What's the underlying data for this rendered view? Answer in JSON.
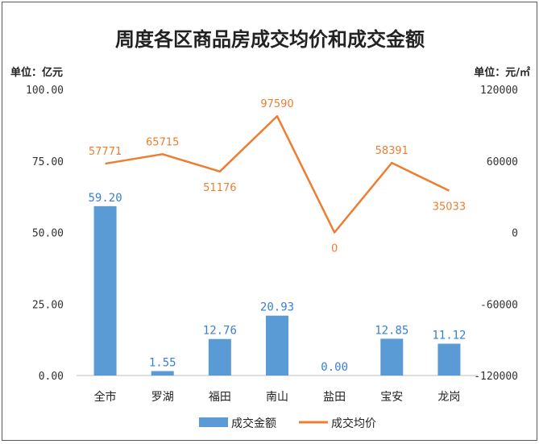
{
  "chart_data": {
    "type": "bar",
    "title": "周度各区商品房成交均价和成交金额",
    "left_unit": "单位：亿元",
    "right_unit": "单位：元/㎡",
    "categories": [
      "全市",
      "罗湖",
      "福田",
      "南山",
      "盐田",
      "宝安",
      "龙岗"
    ],
    "left_axis": {
      "ylim": [
        0,
        100
      ],
      "ticks": [
        0,
        25,
        50,
        75,
        100
      ],
      "tick_labels": [
        "0.00",
        "25.00",
        "50.00",
        "75.00",
        "100.00"
      ]
    },
    "right_axis": {
      "ylim": [
        -120000,
        120000
      ],
      "ticks": [
        -120000,
        -60000,
        0,
        60000,
        120000
      ],
      "tick_labels": [
        "-120000",
        "-60000",
        "0",
        "60000",
        "120000"
      ]
    },
    "series": [
      {
        "name": "成交金额",
        "type": "bar",
        "axis": "left",
        "color": "#5b9bd5",
        "values": [
          59.2,
          1.55,
          12.76,
          20.93,
          0.0,
          12.85,
          11.12
        ],
        "labels": [
          "59.20",
          "1.55",
          "12.76",
          "20.93",
          "0.00",
          "12.85",
          "11.12"
        ]
      },
      {
        "name": "成交均价",
        "type": "line",
        "axis": "right",
        "color": "#ed7d31",
        "values": [
          57771,
          65715,
          51176,
          97590,
          0,
          58391,
          35033
        ],
        "labels": [
          "57771",
          "65715",
          "51176",
          "97590",
          "0",
          "58391",
          "35033"
        ]
      }
    ],
    "grid": false,
    "legend": "bottom"
  }
}
